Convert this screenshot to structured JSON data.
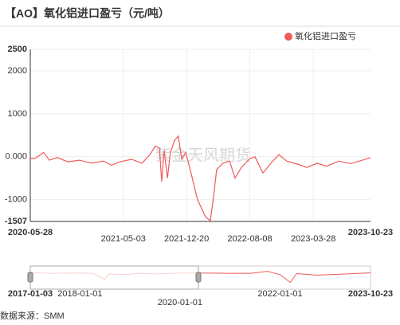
{
  "chart_data": [
    {
      "type": "line",
      "title": "【AO】氧化铝进口盈亏（元/吨）",
      "watermark": "紫金天风期货",
      "x": [
        "2020-05-28",
        "2020-06-17",
        "2020-07-16",
        "2020-08-06",
        "2020-09-04",
        "2020-10-12",
        "2020-11-24",
        "2021-01-07",
        "2021-02-20",
        "2021-03-21",
        "2021-04-19",
        "2021-06-02",
        "2021-07-10",
        "2021-08-08",
        "2021-08-28",
        "2021-09-12",
        "2021-09-20",
        "2021-09-29",
        "2021-10-11",
        "2021-10-22",
        "2021-11-06",
        "2021-11-20",
        "2021-12-02",
        "2021-12-17",
        "2022-01-06",
        "2022-01-29",
        "2022-02-27",
        "2022-03-17",
        "2022-03-29",
        "2022-04-09",
        "2022-05-02",
        "2022-05-26",
        "2022-06-15",
        "2022-07-08",
        "2022-08-07",
        "2022-08-27",
        "2022-09-25",
        "2022-10-24",
        "2022-11-22",
        "2022-12-21",
        "2023-02-03",
        "2023-03-04",
        "2023-04-11",
        "2023-05-16",
        "2023-06-29",
        "2023-08-11",
        "2023-09-24",
        "2023-10-23"
      ],
      "series": [
        {
          "name": "氧化铝进口盈亏",
          "color": "#ef5a5a",
          "values": [
            -50,
            -30,
            100,
            -80,
            -20,
            -120,
            -80,
            -150,
            -100,
            -200,
            -120,
            -60,
            -150,
            50,
            250,
            200,
            -580,
            150,
            -500,
            100,
            380,
            480,
            -50,
            100,
            -400,
            -1000,
            -1400,
            -1490,
            -900,
            -300,
            -150,
            -100,
            -500,
            -250,
            -50,
            0,
            -380,
            -150,
            50,
            -100,
            -180,
            -250,
            -150,
            -220,
            -100,
            -160,
            -80,
            -20
          ]
        }
      ],
      "xlim": [
        "2020-05-28",
        "2023-10-23"
      ],
      "xticks": [
        "2020-05-28",
        "2021-05-03",
        "2021-12-20",
        "2022-08-08",
        "2023-03-28",
        "2023-10-23"
      ],
      "ylim": [
        -1507,
        2500
      ],
      "yticks": [
        -1507,
        -1000,
        {
          "value": 0,
          "label": "0.000"
        },
        1000,
        2000,
        2500
      ],
      "grid": true,
      "legend": "top-right"
    },
    {
      "type": "line",
      "color": "#ef5a5a",
      "x": [
        "2017-01-03",
        "2017-06-01",
        "2017-12-01",
        "2018-04-01",
        "2018-07-01",
        "2018-08-01",
        "2018-12-01",
        "2019-03-01",
        "2019-08-01",
        "2020-01-01",
        "2020-06-01",
        "2021-01-01",
        "2021-06-01",
        "2021-10-01",
        "2022-01-01",
        "2022-03-17",
        "2022-05-01",
        "2022-09-25",
        "2023-03-01",
        "2023-10-23"
      ],
      "values": [
        0,
        -100,
        -50,
        -100,
        -1000,
        -200,
        -300,
        -100,
        -200,
        -50,
        -50,
        -100,
        -100,
        200,
        -300,
        -1490,
        -150,
        -380,
        -250,
        -20
      ],
      "xlim": [
        "2017-01-03",
        "2023-10-23"
      ],
      "xticks": [
        "2017-01-03",
        "2018-01-01",
        "2020-01-01",
        "2022-01-01",
        "2023-10-23"
      ],
      "ylim": [
        -2500,
        1000
      ]
    }
  ],
  "source": "数据来源：SMM"
}
